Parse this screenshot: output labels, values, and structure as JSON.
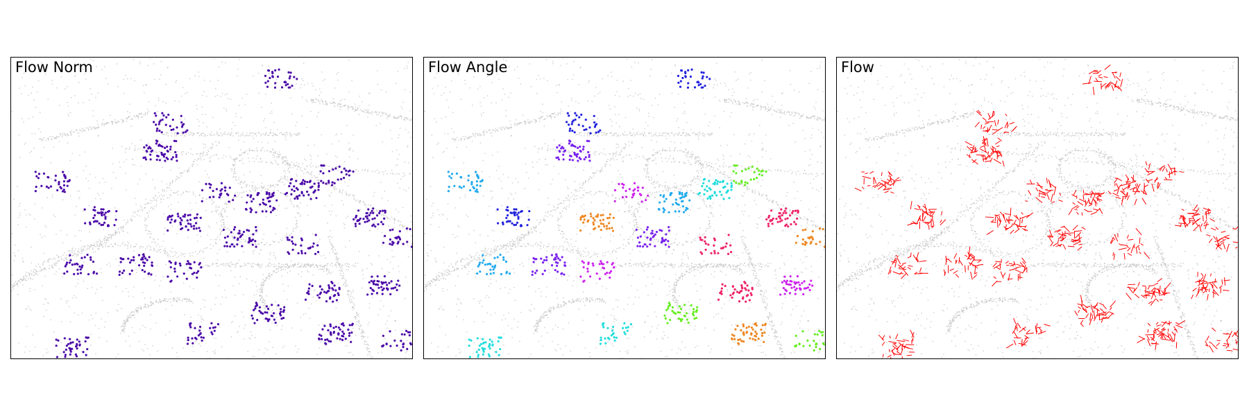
{
  "figure": {
    "panels": [
      {
        "title": "Flow Norm",
        "accent": "#4b0aa8"
      },
      {
        "title": "Flow Angle",
        "accent_colors": [
          "#2222dd",
          "#7a22ee",
          "#cc22ee",
          "#22aaee",
          "#22dddd",
          "#66ee22",
          "#ee2266",
          "#ee8822"
        ]
      },
      {
        "title": "Flow",
        "accent": "#ff0000"
      }
    ],
    "background_points_color": "#bdbdbd"
  }
}
